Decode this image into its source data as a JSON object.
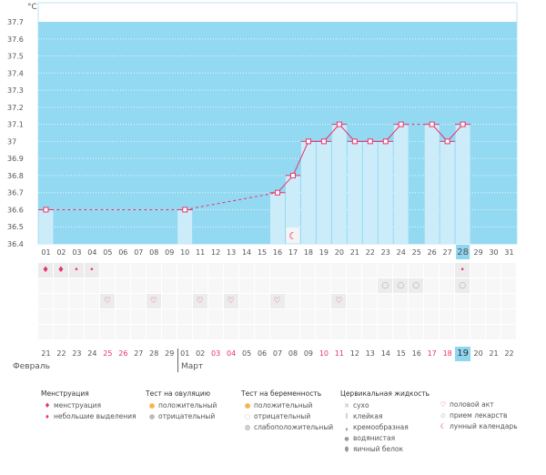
{
  "chart_data": {
    "type": "bar",
    "unit_label": "°C",
    "ylim": [
      36.4,
      37.7
    ],
    "yticks": [
      "36.4",
      "36.5",
      "36.6",
      "36.7",
      "36.8",
      "36.9",
      "37",
      "37.1",
      "37.2",
      "37.3",
      "37.4",
      "37.5",
      "37.6",
      "37.7"
    ],
    "days": [
      "01",
      "02",
      "03",
      "04",
      "05",
      "06",
      "07",
      "08",
      "09",
      "10",
      "11",
      "12",
      "13",
      "14",
      "15",
      "16",
      "17",
      "18",
      "19",
      "20",
      "21",
      "22",
      "23",
      "24",
      "25",
      "26",
      "27",
      "28",
      "29",
      "30",
      "31"
    ],
    "temps": [
      36.6,
      null,
      null,
      null,
      null,
      null,
      null,
      null,
      null,
      36.6,
      null,
      null,
      null,
      null,
      null,
      36.7,
      36.8,
      37.0,
      37.0,
      37.1,
      37.0,
      37.0,
      37.0,
      37.1,
      null,
      37.1,
      37.0,
      37.1,
      null,
      null,
      null
    ],
    "current_day_index": 27,
    "moon_day_index": 16
  },
  "calendar": {
    "dates": [
      "21",
      "22",
      "23",
      "24",
      "25",
      "26",
      "27",
      "28",
      "29",
      "01",
      "02",
      "03",
      "04",
      "05",
      "06",
      "07",
      "08",
      "09",
      "10",
      "11",
      "12",
      "13",
      "14",
      "15",
      "16",
      "17",
      "18",
      "19",
      "20",
      "21",
      "22"
    ],
    "red_indices": [
      4,
      5,
      11,
      12,
      18,
      19,
      25,
      26
    ],
    "months": {
      "feb": "Февраль",
      "mar": "Март"
    },
    "menstruation_full": [
      0,
      1
    ],
    "menstruation_light": [
      2,
      3,
      27
    ],
    "pregnancy_negative": [
      22,
      23,
      24,
      27
    ],
    "intercourse": [
      4,
      7,
      10,
      12,
      15,
      19
    ]
  },
  "legend": {
    "menstruation": {
      "title": "Менструация",
      "items": [
        "менструация",
        "небольшие выделения"
      ]
    },
    "ovulation": {
      "title": "Тест на овуляцию",
      "items": [
        "положительный",
        "отрицательный"
      ]
    },
    "pregnancy": {
      "title": "Тест на беременность",
      "items": [
        "положительный",
        "отрицательный",
        "слабоположительный"
      ]
    },
    "cervical": {
      "title": "Цервикальная жидкость",
      "items": [
        "сухо",
        "клейкая",
        "кремообразная",
        "водянистая",
        "яичный белок"
      ]
    },
    "other": {
      "items": [
        "половой акт",
        "прием лекарств",
        "лунный календарь"
      ]
    }
  },
  "colors": {
    "bg": "#94d9f2",
    "bar": "#ccecfa",
    "line": "#e8336b"
  }
}
